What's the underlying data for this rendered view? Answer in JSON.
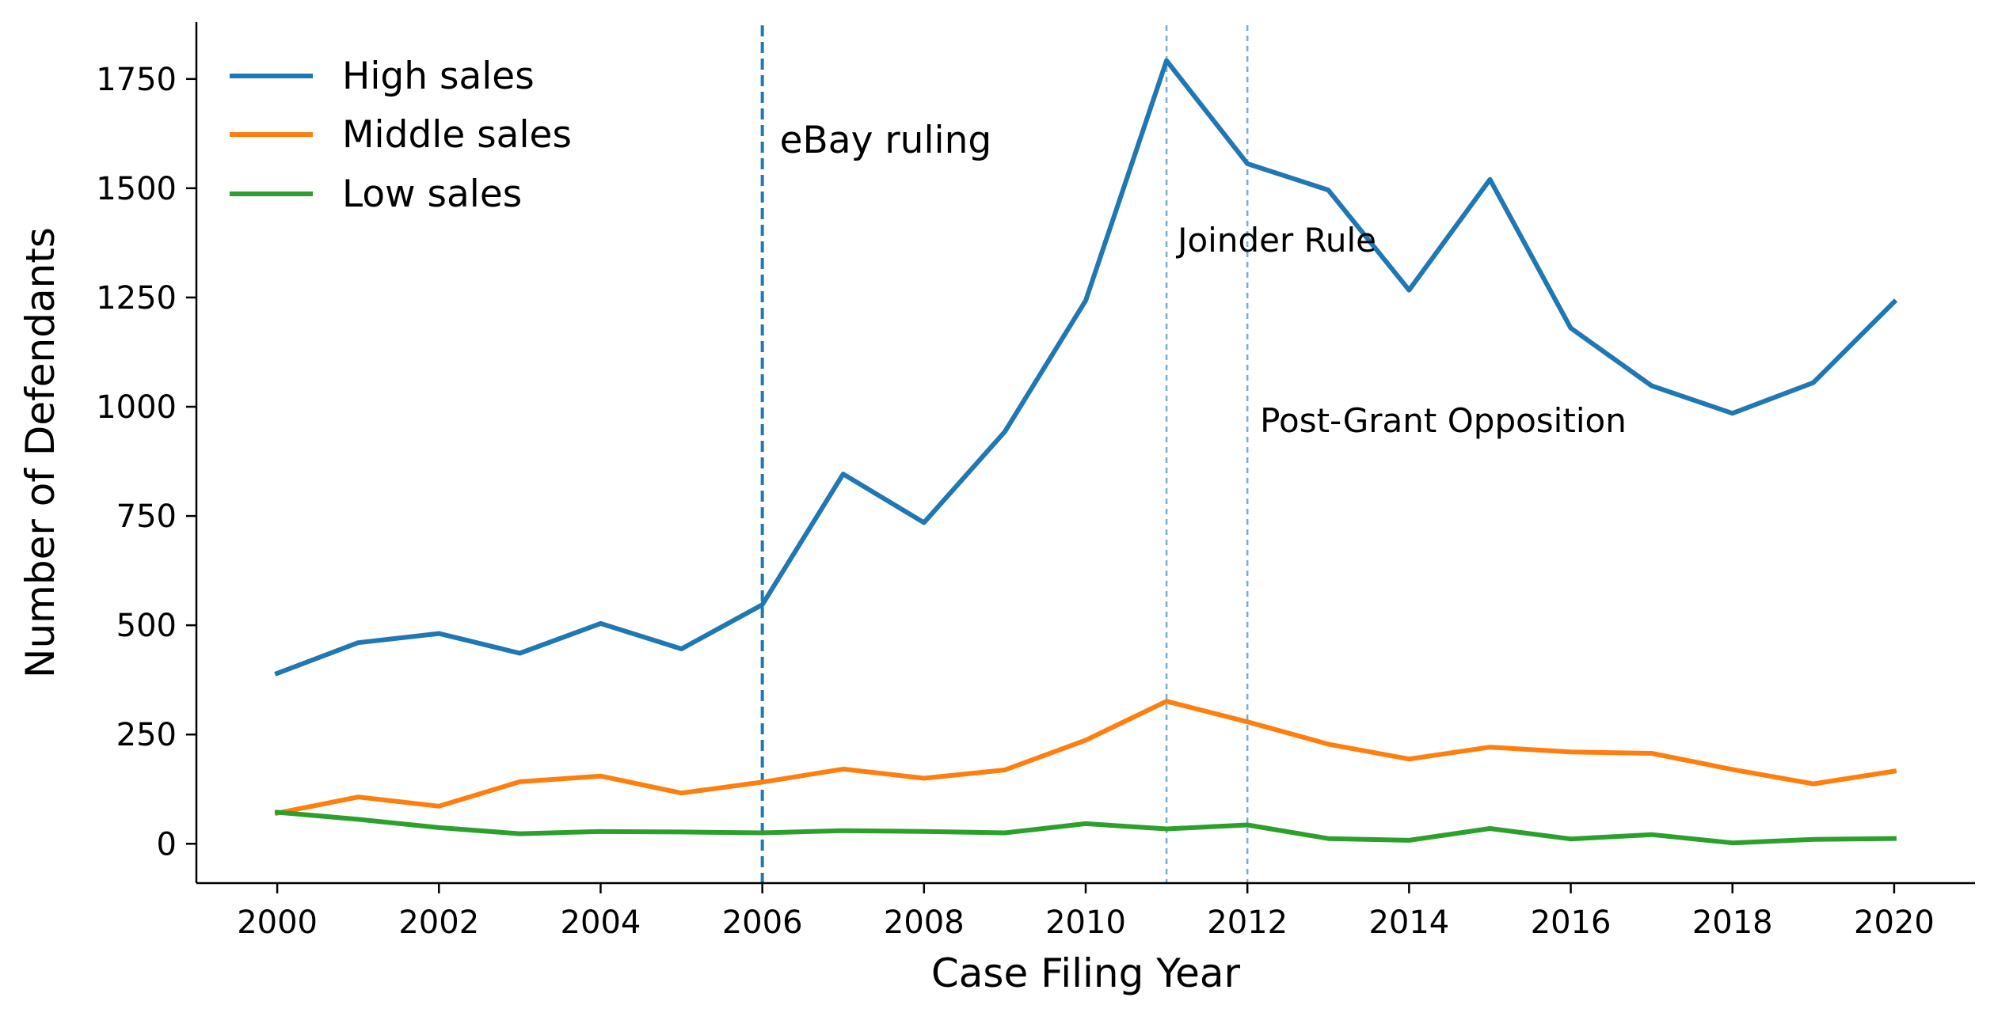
{
  "chart_data": {
    "type": "line",
    "title": "",
    "xlabel": "Case Filing Year",
    "ylabel": "Number of Defendants",
    "x": [
      2000,
      2001,
      2002,
      2003,
      2004,
      2005,
      2006,
      2007,
      2008,
      2009,
      2010,
      2011,
      2012,
      2013,
      2014,
      2015,
      2016,
      2017,
      2018,
      2019,
      2020
    ],
    "xlim": [
      1999.0,
      2021.0
    ],
    "ylim": [
      -90,
      1880
    ],
    "xticks": [
      2000,
      2002,
      2004,
      2006,
      2008,
      2010,
      2012,
      2014,
      2016,
      2018,
      2020
    ],
    "xtick_labels": [
      "2000",
      "2002",
      "2004",
      "2006",
      "2008",
      "2010",
      "2012",
      "2014",
      "2016",
      "2018",
      "2020"
    ],
    "yticks": [
      0,
      250,
      500,
      750,
      1000,
      1250,
      1500,
      1750
    ],
    "ytick_labels": [
      "0",
      "250",
      "500",
      "750",
      "1000",
      "1250",
      "1500",
      "1750"
    ],
    "grid": false,
    "legend_position": "top-left",
    "series": [
      {
        "name": "High sales",
        "color": "#1f77b4",
        "values": [
          390,
          460,
          481,
          436,
          504,
          446,
          547,
          846,
          735,
          943,
          1243,
          1792,
          1556,
          1496,
          1267,
          1520,
          1180,
          1048,
          985,
          1055,
          1240
        ]
      },
      {
        "name": "Middle sales",
        "color": "#ff7f0e",
        "values": [
          70,
          107,
          86,
          142,
          155,
          116,
          141,
          171,
          150,
          169,
          237,
          326,
          279,
          228,
          194,
          221,
          210,
          207,
          170,
          137,
          166
        ]
      },
      {
        "name": "Low sales",
        "color": "#2ca02c",
        "values": [
          72,
          56,
          37,
          23,
          28,
          27,
          25,
          30,
          28,
          25,
          46,
          34,
          43,
          12,
          8,
          35,
          11,
          21,
          2,
          10,
          12
        ]
      }
    ],
    "vlines": [
      {
        "x": 2006,
        "label": "eBay ruling",
        "color": "#1f77b4",
        "style": "dashed"
      },
      {
        "x": 2011,
        "label": "Joinder Rule",
        "color": "#1f77b4",
        "style": "dashed-faint"
      },
      {
        "x": 2012,
        "label": "Post-Grant Opposition",
        "color": "#1f77b4",
        "style": "dashed-faint"
      }
    ]
  }
}
